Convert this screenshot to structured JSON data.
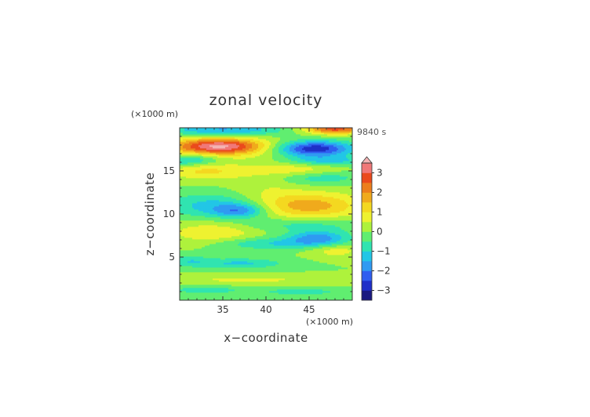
{
  "chart_data": {
    "type": "heatmap",
    "title": "zonal velocity",
    "xlabel": "x−coordinate",
    "ylabel": "z−coordinate",
    "x_unit": "(×1000 m)",
    "y_unit": "(×1000 m)",
    "time_label": "9840 s",
    "xlim": [
      30,
      50
    ],
    "ylim": [
      0,
      20
    ],
    "x_ticks": [
      35,
      40,
      45
    ],
    "y_ticks": [
      5,
      10,
      15
    ],
    "colorbar": {
      "range": [
        -3.5,
        3.5
      ],
      "step": 0.5,
      "ticks": [
        3,
        2,
        1,
        0,
        -1,
        -2,
        -3
      ],
      "tick_labels": [
        "3",
        "2",
        "1",
        "0",
        "−1",
        "−2",
        "−3"
      ],
      "overflow_top": true,
      "colors": [
        "#1a1a80",
        "#1f2fc8",
        "#2f5ef0",
        "#2f9af2",
        "#22c6e6",
        "#30e4b0",
        "#60ee70",
        "#aef23c",
        "#eef230",
        "#f4d820",
        "#f0aa1c",
        "#ec7e1c",
        "#ea4a1c",
        "#f07878"
      ],
      "overflow_color": "#f4b4b4"
    },
    "grid": false,
    "legend": "colorbar on right",
    "field_description": "zonal velocity u(x,z) with alternating positive/negative horizontal jets; magnitudes up to about ±3 m/s near z=18 and near the top boundary"
  }
}
